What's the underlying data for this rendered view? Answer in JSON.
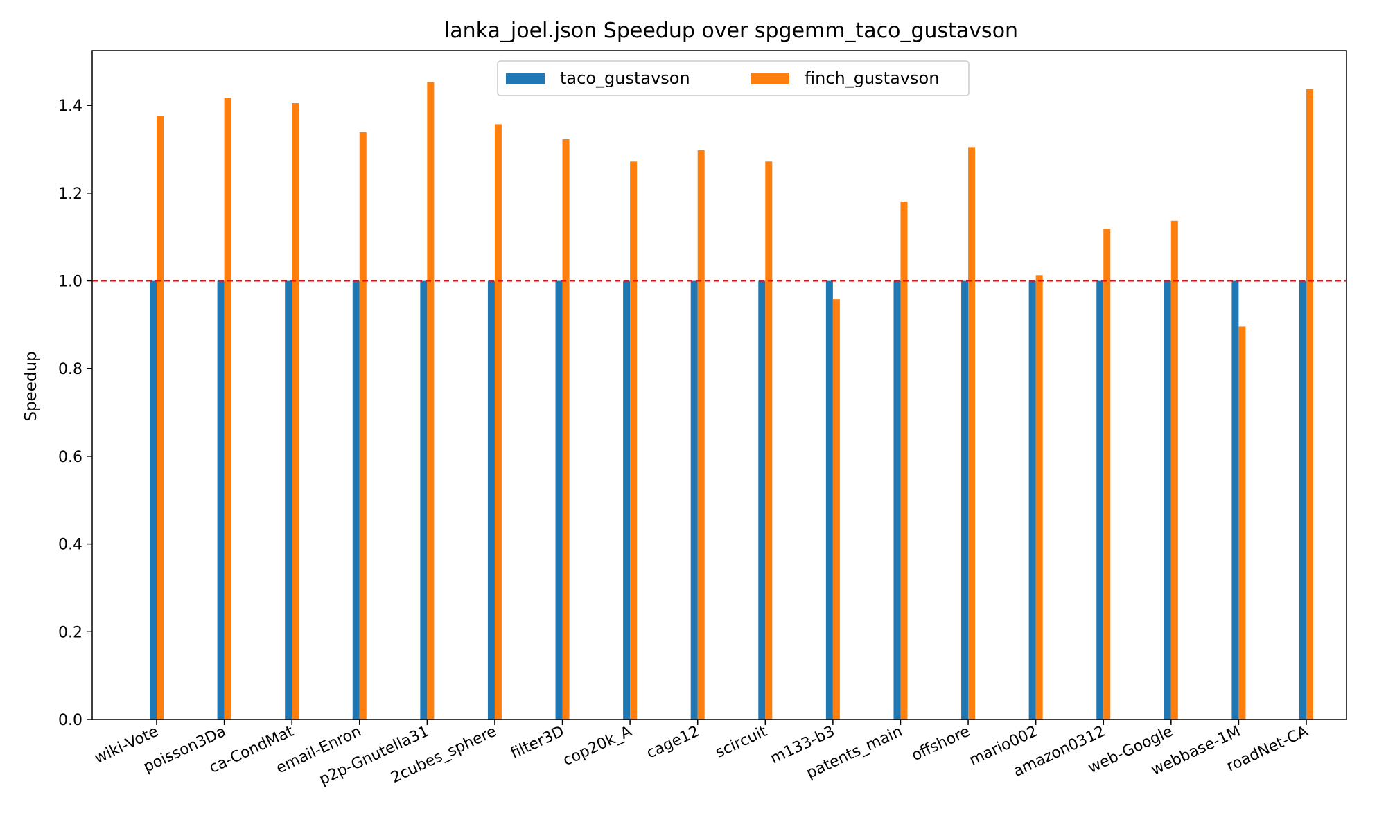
{
  "chart_data": {
    "type": "bar",
    "title": "lanka_joel.json Speedup over spgemm_taco_gustavson",
    "xlabel": "",
    "ylabel": "Speedup",
    "ylim": [
      0,
      1.525
    ],
    "yticks": [
      0.0,
      0.2,
      0.4,
      0.6,
      0.8,
      1.0,
      1.2,
      1.4
    ],
    "ytick_labels": [
      "0.0",
      "0.2",
      "0.4",
      "0.6",
      "0.8",
      "1.0",
      "1.2",
      "1.4"
    ],
    "categories": [
      "wiki-Vote",
      "poisson3Da",
      "ca-CondMat",
      "email-Enron",
      "p2p-Gnutella31",
      "2cubes_sphere",
      "filter3D",
      "cop20k_A",
      "cage12",
      "scircuit",
      "m133-b3",
      "patents_main",
      "offshore",
      "mario002",
      "amazon0312",
      "web-Google",
      "webbase-1M",
      "roadNet-CA"
    ],
    "series": [
      {
        "name": "taco_gustavson",
        "color": "#1f77b4",
        "values": [
          1,
          1,
          1,
          1,
          1,
          1,
          1,
          1,
          1,
          1,
          1,
          1,
          1,
          1,
          1,
          1,
          1,
          1
        ]
      },
      {
        "name": "finch_gustavson",
        "color": "#ff7f0e",
        "values": [
          1.375,
          1.417,
          1.405,
          1.339,
          1.453,
          1.357,
          1.323,
          1.272,
          1.298,
          1.272,
          0.958,
          1.181,
          1.305,
          1.013,
          1.119,
          1.137,
          0.896,
          1.437
        ]
      }
    ],
    "reference_line": {
      "y": 1.0,
      "color": "#ff0000",
      "style": "dashed"
    },
    "legend_position": "upper center",
    "legend_columns": 2,
    "grid": false,
    "x_tick_rotation": 25
  }
}
